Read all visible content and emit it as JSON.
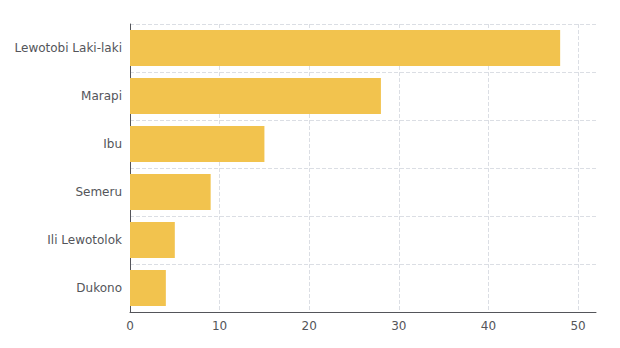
{
  "chart_data": {
    "type": "bar",
    "orientation": "horizontal",
    "categories": [
      "Dukono",
      "Ili Lewotolok",
      "Semeru",
      "Ibu",
      "Marapi",
      "Lewotobi Laki-laki"
    ],
    "values": [
      4,
      5,
      9,
      15,
      28,
      48
    ],
    "color": "#F2C34E",
    "xlim": [
      0,
      52
    ],
    "xticks": [
      0,
      10,
      20,
      30,
      40,
      50
    ],
    "grid": true
  }
}
